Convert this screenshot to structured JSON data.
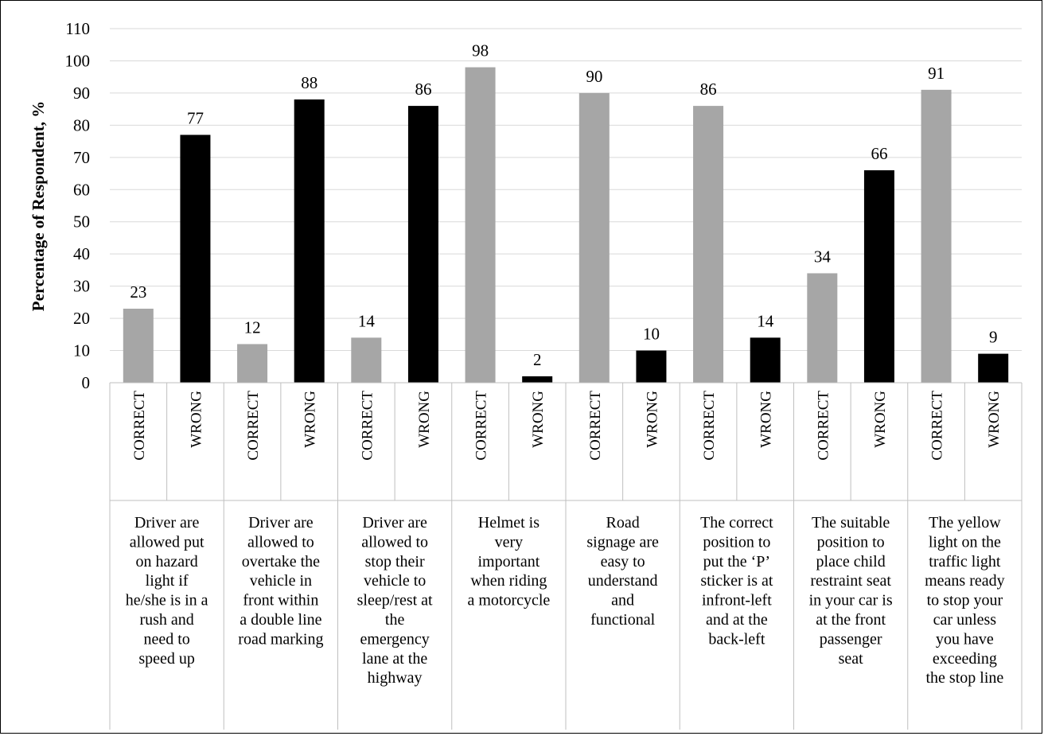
{
  "chart_data": {
    "type": "bar",
    "ylabel": "Percentage of Respondent, %",
    "ylim": [
      0,
      110
    ],
    "yticks": [
      0,
      10,
      20,
      30,
      40,
      50,
      60,
      70,
      80,
      90,
      100,
      110
    ],
    "grid": true,
    "series_colors": {
      "CORRECT": "#a6a6a6",
      "WRONG": "#000000"
    },
    "groups": [
      {
        "label": [
          "Driver are",
          "allowed put",
          "on hazard",
          "light if",
          "he/she is in a",
          "rush and",
          "need to",
          "speed up"
        ],
        "bars": [
          {
            "category": "CORRECT",
            "value": 23
          },
          {
            "category": "WRONG",
            "value": 77
          }
        ]
      },
      {
        "label": [
          "Driver are",
          "allowed to",
          "overtake the",
          "vehicle in",
          "front within",
          "a double line",
          "road marking"
        ],
        "bars": [
          {
            "category": "CORRECT",
            "value": 12
          },
          {
            "category": "WRONG",
            "value": 88
          }
        ]
      },
      {
        "label": [
          "Driver are",
          "allowed to",
          "stop their",
          "vehicle to",
          "sleep/rest at",
          "the",
          "emergency",
          "lane at the",
          "highway"
        ],
        "bars": [
          {
            "category": "CORRECT",
            "value": 14
          },
          {
            "category": "WRONG",
            "value": 86
          }
        ]
      },
      {
        "label": [
          "Helmet is",
          "very",
          "important",
          "when riding",
          "a motorcycle"
        ],
        "bars": [
          {
            "category": "CORRECT",
            "value": 98
          },
          {
            "category": "WRONG",
            "value": 2
          }
        ]
      },
      {
        "label": [
          "Road",
          "signage are",
          "easy to",
          "understand",
          "and",
          "functional"
        ],
        "bars": [
          {
            "category": "CORRECT",
            "value": 90
          },
          {
            "category": "WRONG",
            "value": 10
          }
        ]
      },
      {
        "label": [
          "The correct",
          "position to",
          "put the ‘P’",
          "sticker is at",
          "infront-left",
          "and at the",
          "back-left"
        ],
        "bars": [
          {
            "category": "CORRECT",
            "value": 86
          },
          {
            "category": "WRONG",
            "value": 14
          }
        ]
      },
      {
        "label": [
          "The suitable",
          "position to",
          "place child",
          "restraint seat",
          "in your car is",
          "at the front",
          "passenger",
          "seat"
        ],
        "bars": [
          {
            "category": "CORRECT",
            "value": 34
          },
          {
            "category": "WRONG",
            "value": 66
          }
        ]
      },
      {
        "label": [
          "The yellow",
          "light on the",
          "traffic light",
          "means ready",
          "to stop your",
          "car unless",
          "you have",
          "exceeding",
          "the stop line"
        ],
        "bars": [
          {
            "category": "CORRECT",
            "value": 91
          },
          {
            "category": "WRONG",
            "value": 9
          }
        ]
      }
    ]
  }
}
